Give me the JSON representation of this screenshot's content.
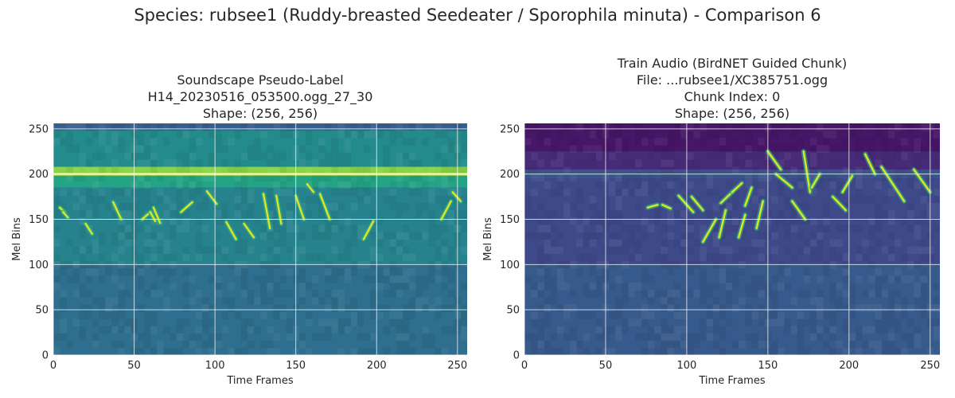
{
  "figure": {
    "title": "Species: rubsee1 (Ruddy-breasted Seedeater / Sporophila minuta) - Comparison 6"
  },
  "colormap": "viridis",
  "chart_data": [
    {
      "type": "heatmap",
      "title_lines": [
        "Soundscape Pseudo-Label",
        "H14_20230516_053500.ogg_27_30",
        "Shape: (256, 256)"
      ],
      "xlabel": "Time Frames",
      "ylabel": "Mel Bins",
      "xlim": [
        0,
        256
      ],
      "ylim": [
        0,
        256
      ],
      "xticks": [
        0,
        50,
        100,
        150,
        200,
        250
      ],
      "yticks": [
        0,
        50,
        100,
        150,
        200,
        250
      ],
      "grid": true,
      "background": {
        "base_level": 0.38,
        "bands": [
          {
            "y0": 248,
            "y1": 256,
            "level": 0.3
          },
          {
            "y0": 208,
            "y1": 248,
            "level": 0.48
          },
          {
            "y0": 198,
            "y1": 208,
            "level": 0.82
          },
          {
            "y0": 185,
            "y1": 198,
            "level": 0.58
          },
          {
            "y0": 100,
            "y1": 185,
            "level": 0.45
          },
          {
            "y0": 0,
            "y1": 100,
            "level": 0.36
          }
        ],
        "lines": [
          {
            "y": 200,
            "level": 1.0
          }
        ]
      },
      "calls": [
        {
          "t0": 4,
          "t1": 7,
          "m0": 163,
          "m1": 158
        },
        {
          "t0": 6,
          "t1": 9,
          "m0": 158,
          "m1": 152
        },
        {
          "t0": 20,
          "t1": 24,
          "m0": 145,
          "m1": 134
        },
        {
          "t0": 37,
          "t1": 42,
          "m0": 169,
          "m1": 150
        },
        {
          "t0": 55,
          "t1": 60,
          "m0": 150,
          "m1": 158
        },
        {
          "t0": 60,
          "t1": 63,
          "m0": 158,
          "m1": 148
        },
        {
          "t0": 62,
          "t1": 66,
          "m0": 163,
          "m1": 146
        },
        {
          "t0": 79,
          "t1": 86,
          "m0": 158,
          "m1": 169
        },
        {
          "t0": 95,
          "t1": 101,
          "m0": 181,
          "m1": 167
        },
        {
          "t0": 107,
          "t1": 113,
          "m0": 147,
          "m1": 128
        },
        {
          "t0": 118,
          "t1": 124,
          "m0": 145,
          "m1": 130
        },
        {
          "t0": 130,
          "t1": 134,
          "m0": 178,
          "m1": 140
        },
        {
          "t0": 138,
          "t1": 141,
          "m0": 176,
          "m1": 145
        },
        {
          "t0": 150,
          "t1": 155,
          "m0": 176,
          "m1": 150
        },
        {
          "t0": 157,
          "t1": 161,
          "m0": 189,
          "m1": 180
        },
        {
          "t0": 165,
          "t1": 171,
          "m0": 178,
          "m1": 150
        },
        {
          "t0": 192,
          "t1": 198,
          "m0": 128,
          "m1": 148
        },
        {
          "t0": 240,
          "t1": 246,
          "m0": 150,
          "m1": 170
        },
        {
          "t0": 247,
          "t1": 252,
          "m0": 180,
          "m1": 170
        }
      ]
    },
    {
      "type": "heatmap",
      "title_lines": [
        "Train Audio (BirdNET Guided Chunk)",
        "File: ...rubsee1/XC385751.ogg",
        "Chunk Index: 0",
        "Shape: (256, 256)"
      ],
      "xlabel": "Time Frames",
      "ylabel": "Mel Bins",
      "xlim": [
        0,
        256
      ],
      "ylim": [
        0,
        256
      ],
      "xticks": [
        0,
        50,
        100,
        150,
        200,
        250
      ],
      "yticks": [
        0,
        50,
        100,
        150,
        200,
        250
      ],
      "grid": true,
      "background": {
        "base_level": 0.2,
        "bands": [
          {
            "y0": 225,
            "y1": 256,
            "level": 0.06
          },
          {
            "y0": 205,
            "y1": 225,
            "level": 0.12
          },
          {
            "y0": 195,
            "y1": 205,
            "level": 0.26
          },
          {
            "y0": 100,
            "y1": 195,
            "level": 0.22
          },
          {
            "y0": 0,
            "y1": 100,
            "level": 0.28
          }
        ],
        "lines": []
      },
      "calls": [
        {
          "t0": 76,
          "t1": 82,
          "m0": 163,
          "m1": 166
        },
        {
          "t0": 85,
          "t1": 90,
          "m0": 166,
          "m1": 162
        },
        {
          "t0": 95,
          "t1": 104,
          "m0": 176,
          "m1": 158
        },
        {
          "t0": 103,
          "t1": 110,
          "m0": 175,
          "m1": 160
        },
        {
          "t0": 110,
          "t1": 118,
          "m0": 125,
          "m1": 150
        },
        {
          "t0": 120,
          "t1": 124,
          "m0": 130,
          "m1": 160
        },
        {
          "t0": 121,
          "t1": 128,
          "m0": 168,
          "m1": 180
        },
        {
          "t0": 128,
          "t1": 134,
          "m0": 180,
          "m1": 190
        },
        {
          "t0": 132,
          "t1": 136,
          "m0": 130,
          "m1": 155
        },
        {
          "t0": 136,
          "t1": 140,
          "m0": 165,
          "m1": 185
        },
        {
          "t0": 143,
          "t1": 147,
          "m0": 140,
          "m1": 170
        },
        {
          "t0": 150,
          "t1": 158,
          "m0": 225,
          "m1": 205
        },
        {
          "t0": 155,
          "t1": 165,
          "m0": 200,
          "m1": 185
        },
        {
          "t0": 165,
          "t1": 173,
          "m0": 170,
          "m1": 150
        },
        {
          "t0": 172,
          "t1": 176,
          "m0": 225,
          "m1": 180
        },
        {
          "t0": 177,
          "t1": 182,
          "m0": 185,
          "m1": 200
        },
        {
          "t0": 190,
          "t1": 198,
          "m0": 175,
          "m1": 160
        },
        {
          "t0": 196,
          "t1": 202,
          "m0": 180,
          "m1": 198
        },
        {
          "t0": 210,
          "t1": 216,
          "m0": 222,
          "m1": 200
        },
        {
          "t0": 220,
          "t1": 234,
          "m0": 208,
          "m1": 170
        },
        {
          "t0": 240,
          "t1": 250,
          "m0": 205,
          "m1": 180
        }
      ]
    }
  ]
}
